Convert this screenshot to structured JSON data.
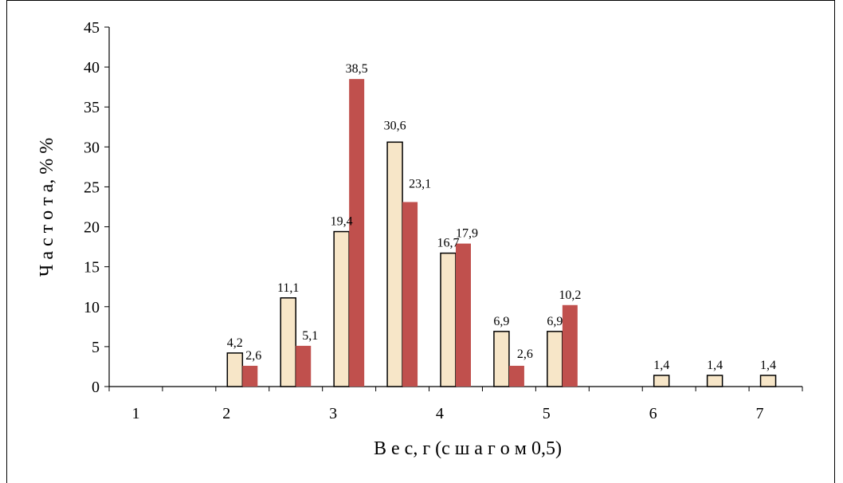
{
  "chart_data": {
    "type": "bar",
    "title": "",
    "xlabel": "В е с, г   (с   ш а г о м   0,5)",
    "ylabel": "Ч а с т о т а,  % %",
    "ylim": [
      0,
      45
    ],
    "y_ticks": [
      0,
      5,
      10,
      15,
      20,
      25,
      30,
      35,
      40,
      45
    ],
    "x_tick_labels": [
      "1",
      "2",
      "3",
      "4",
      "5",
      "6",
      "7"
    ],
    "categories": [
      "1",
      "1,5",
      "2",
      "2,5",
      "3",
      "3,5",
      "4",
      "4,5",
      "5",
      "5,5",
      "6",
      "6,5",
      "7"
    ],
    "series": [
      {
        "color": "#F7E6C8",
        "stroke": "#000000",
        "values": [
          0,
          0,
          4.2,
          11.1,
          19.4,
          30.6,
          16.7,
          6.9,
          6.9,
          0,
          1.4,
          1.4,
          1.4
        ],
        "labels": [
          "",
          "",
          "4,2",
          "11,1",
          "19,4",
          "30,6",
          "16,7",
          "6,9",
          "6,9",
          "",
          "1,4",
          "1,4",
          "1,4"
        ]
      },
      {
        "color": "#C0504D",
        "stroke": "none",
        "values": [
          0,
          0,
          2.6,
          5.1,
          38.5,
          23.1,
          17.9,
          2.6,
          10.2,
          0,
          0,
          0,
          0
        ],
        "labels": [
          "",
          "",
          "2,6",
          "5,1",
          "38,5",
          "23,1",
          "17,9",
          "2,6",
          "10,2",
          "",
          "",
          "",
          ""
        ]
      }
    ],
    "grid": false,
    "legend": "none"
  }
}
